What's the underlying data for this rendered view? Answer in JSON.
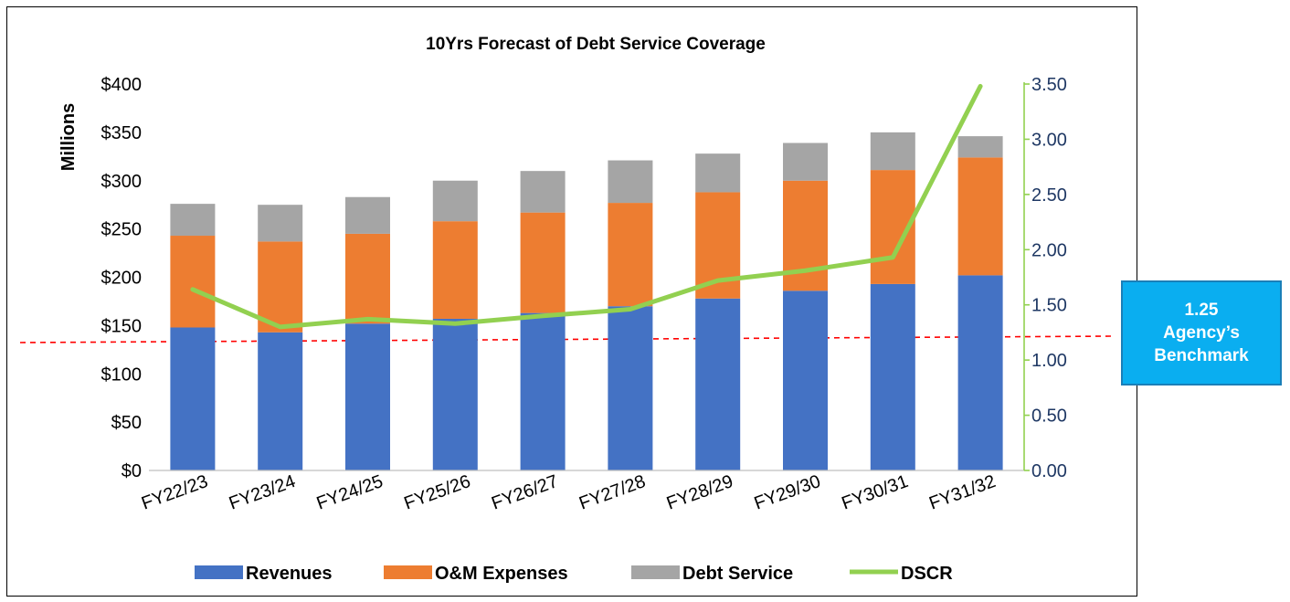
{
  "chart_data": {
    "type": "bar",
    "stacked": true,
    "title": "10Yrs Forecast of Debt Service Coverage",
    "ylabel": "Millions",
    "y2label": "",
    "categories": [
      "FY22/23",
      "FY23/24",
      "FY24/25",
      "FY25/26",
      "FY26/27",
      "FY27/28",
      "FY28/29",
      "FY29/30",
      "FY30/31",
      "FY31/32"
    ],
    "ylim": [
      0,
      400
    ],
    "y_ticks": [
      "$0",
      "$50",
      "$100",
      "$150",
      "$200",
      "$250",
      "$300",
      "$350",
      "$400"
    ],
    "y2lim": [
      0,
      3.5
    ],
    "y2_ticks": [
      "0.00",
      "0.50",
      "1.00",
      "1.50",
      "2.00",
      "2.50",
      "3.00",
      "3.50"
    ],
    "series": [
      {
        "name": "Revenues",
        "type": "bar",
        "axis": "left",
        "color": "#4472c4",
        "values": [
          148,
          143,
          152,
          157,
          163,
          170,
          178,
          186,
          193,
          202
        ]
      },
      {
        "name": "O&M Expenses",
        "type": "bar",
        "axis": "left",
        "color": "#ed7d31",
        "values": [
          95,
          94,
          93,
          101,
          104,
          107,
          110,
          114,
          118,
          122
        ]
      },
      {
        "name": "Debt Service",
        "type": "bar",
        "axis": "left",
        "color": "#a5a5a5",
        "values": [
          33,
          38,
          38,
          42,
          43,
          44,
          40,
          39,
          39,
          22
        ]
      },
      {
        "name": "DSCR",
        "type": "line",
        "axis": "right",
        "color": "#92d050",
        "values": [
          1.64,
          1.3,
          1.37,
          1.33,
          1.4,
          1.46,
          1.72,
          1.81,
          1.93,
          3.48
        ]
      }
    ],
    "benchmark": {
      "value": 1.25,
      "color": "#ff0000",
      "style": "dashed"
    },
    "legend_position": "bottom",
    "grid": false
  },
  "callout": {
    "lines": [
      "1.25",
      "Agency’s",
      "Benchmark"
    ],
    "bg_color": "#0aaef0"
  }
}
